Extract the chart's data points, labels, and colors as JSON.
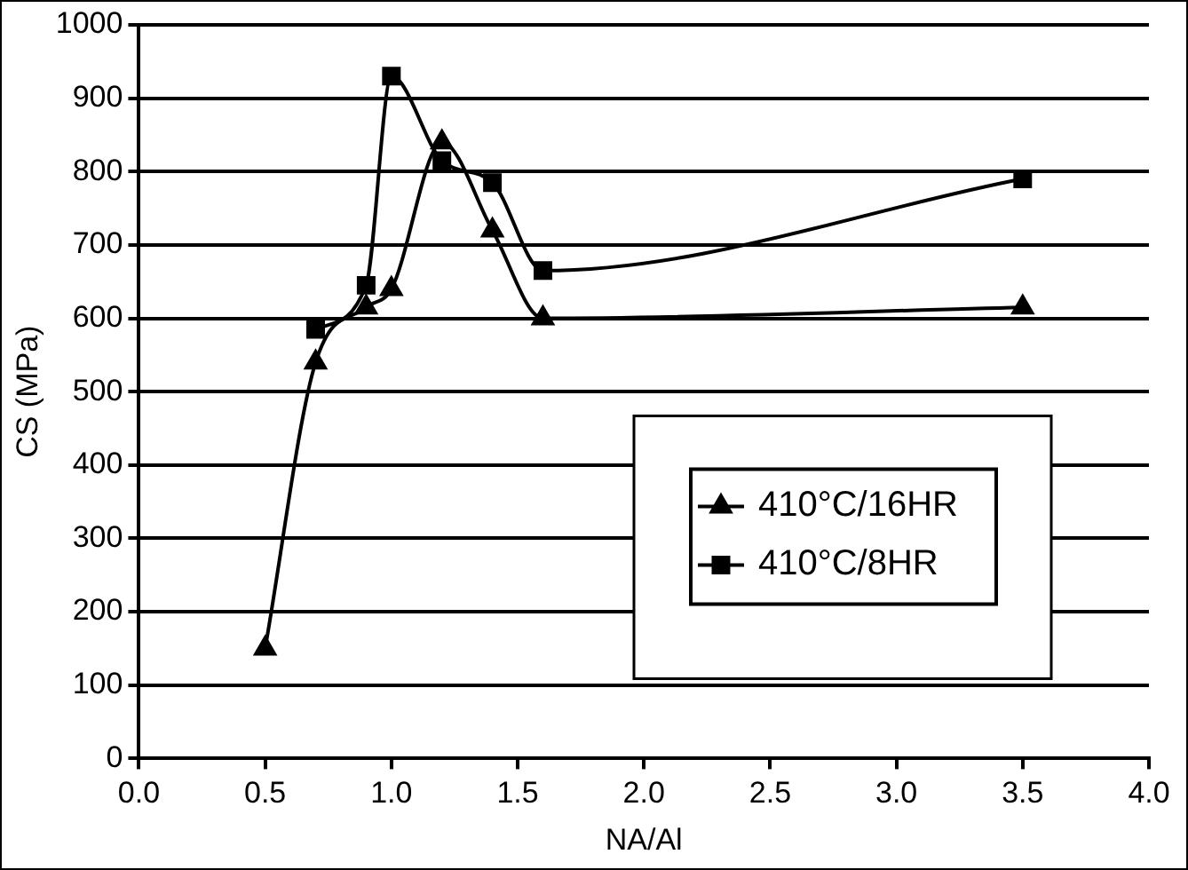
{
  "chart_data": {
    "type": "line",
    "xlabel": "NA/Al",
    "ylabel": "CS (MPa)",
    "xlim": [
      0,
      4
    ],
    "xticks": [
      {
        "value": 0,
        "label": "0.0"
      },
      {
        "value": 0.5,
        "label": "0.5"
      },
      {
        "value": 1,
        "label": "1.0"
      },
      {
        "value": 1.5,
        "label": "1.5"
      },
      {
        "value": 2,
        "label": "2.0"
      },
      {
        "value": 2.5,
        "label": "2.5"
      },
      {
        "value": 3,
        "label": "3.0"
      },
      {
        "value": 3.5,
        "label": "3.5"
      },
      {
        "value": 4,
        "label": "4.0"
      }
    ],
    "ylim": [
      0,
      1000
    ],
    "yticks": [
      0,
      100,
      200,
      300,
      400,
      500,
      600,
      700,
      800,
      900,
      1000
    ],
    "grid": "y",
    "legend": "bottom right",
    "series": [
      {
        "name": "410°C/16HR",
        "color": "#000000",
        "marker": "triangle",
        "x": [
          0.5,
          0.7,
          0.9,
          1.0,
          1.2,
          1.4,
          1.6,
          3.5
        ],
        "values": [
          150,
          540,
          615,
          640,
          840,
          720,
          600,
          615
        ]
      },
      {
        "name": "410°C/8HR",
        "color": "#000000",
        "marker": "square",
        "x": [
          0.7,
          0.9,
          1.0,
          1.2,
          1.4,
          1.6,
          3.5
        ],
        "values": [
          585,
          645,
          930,
          815,
          785,
          665,
          790
        ]
      }
    ]
  }
}
